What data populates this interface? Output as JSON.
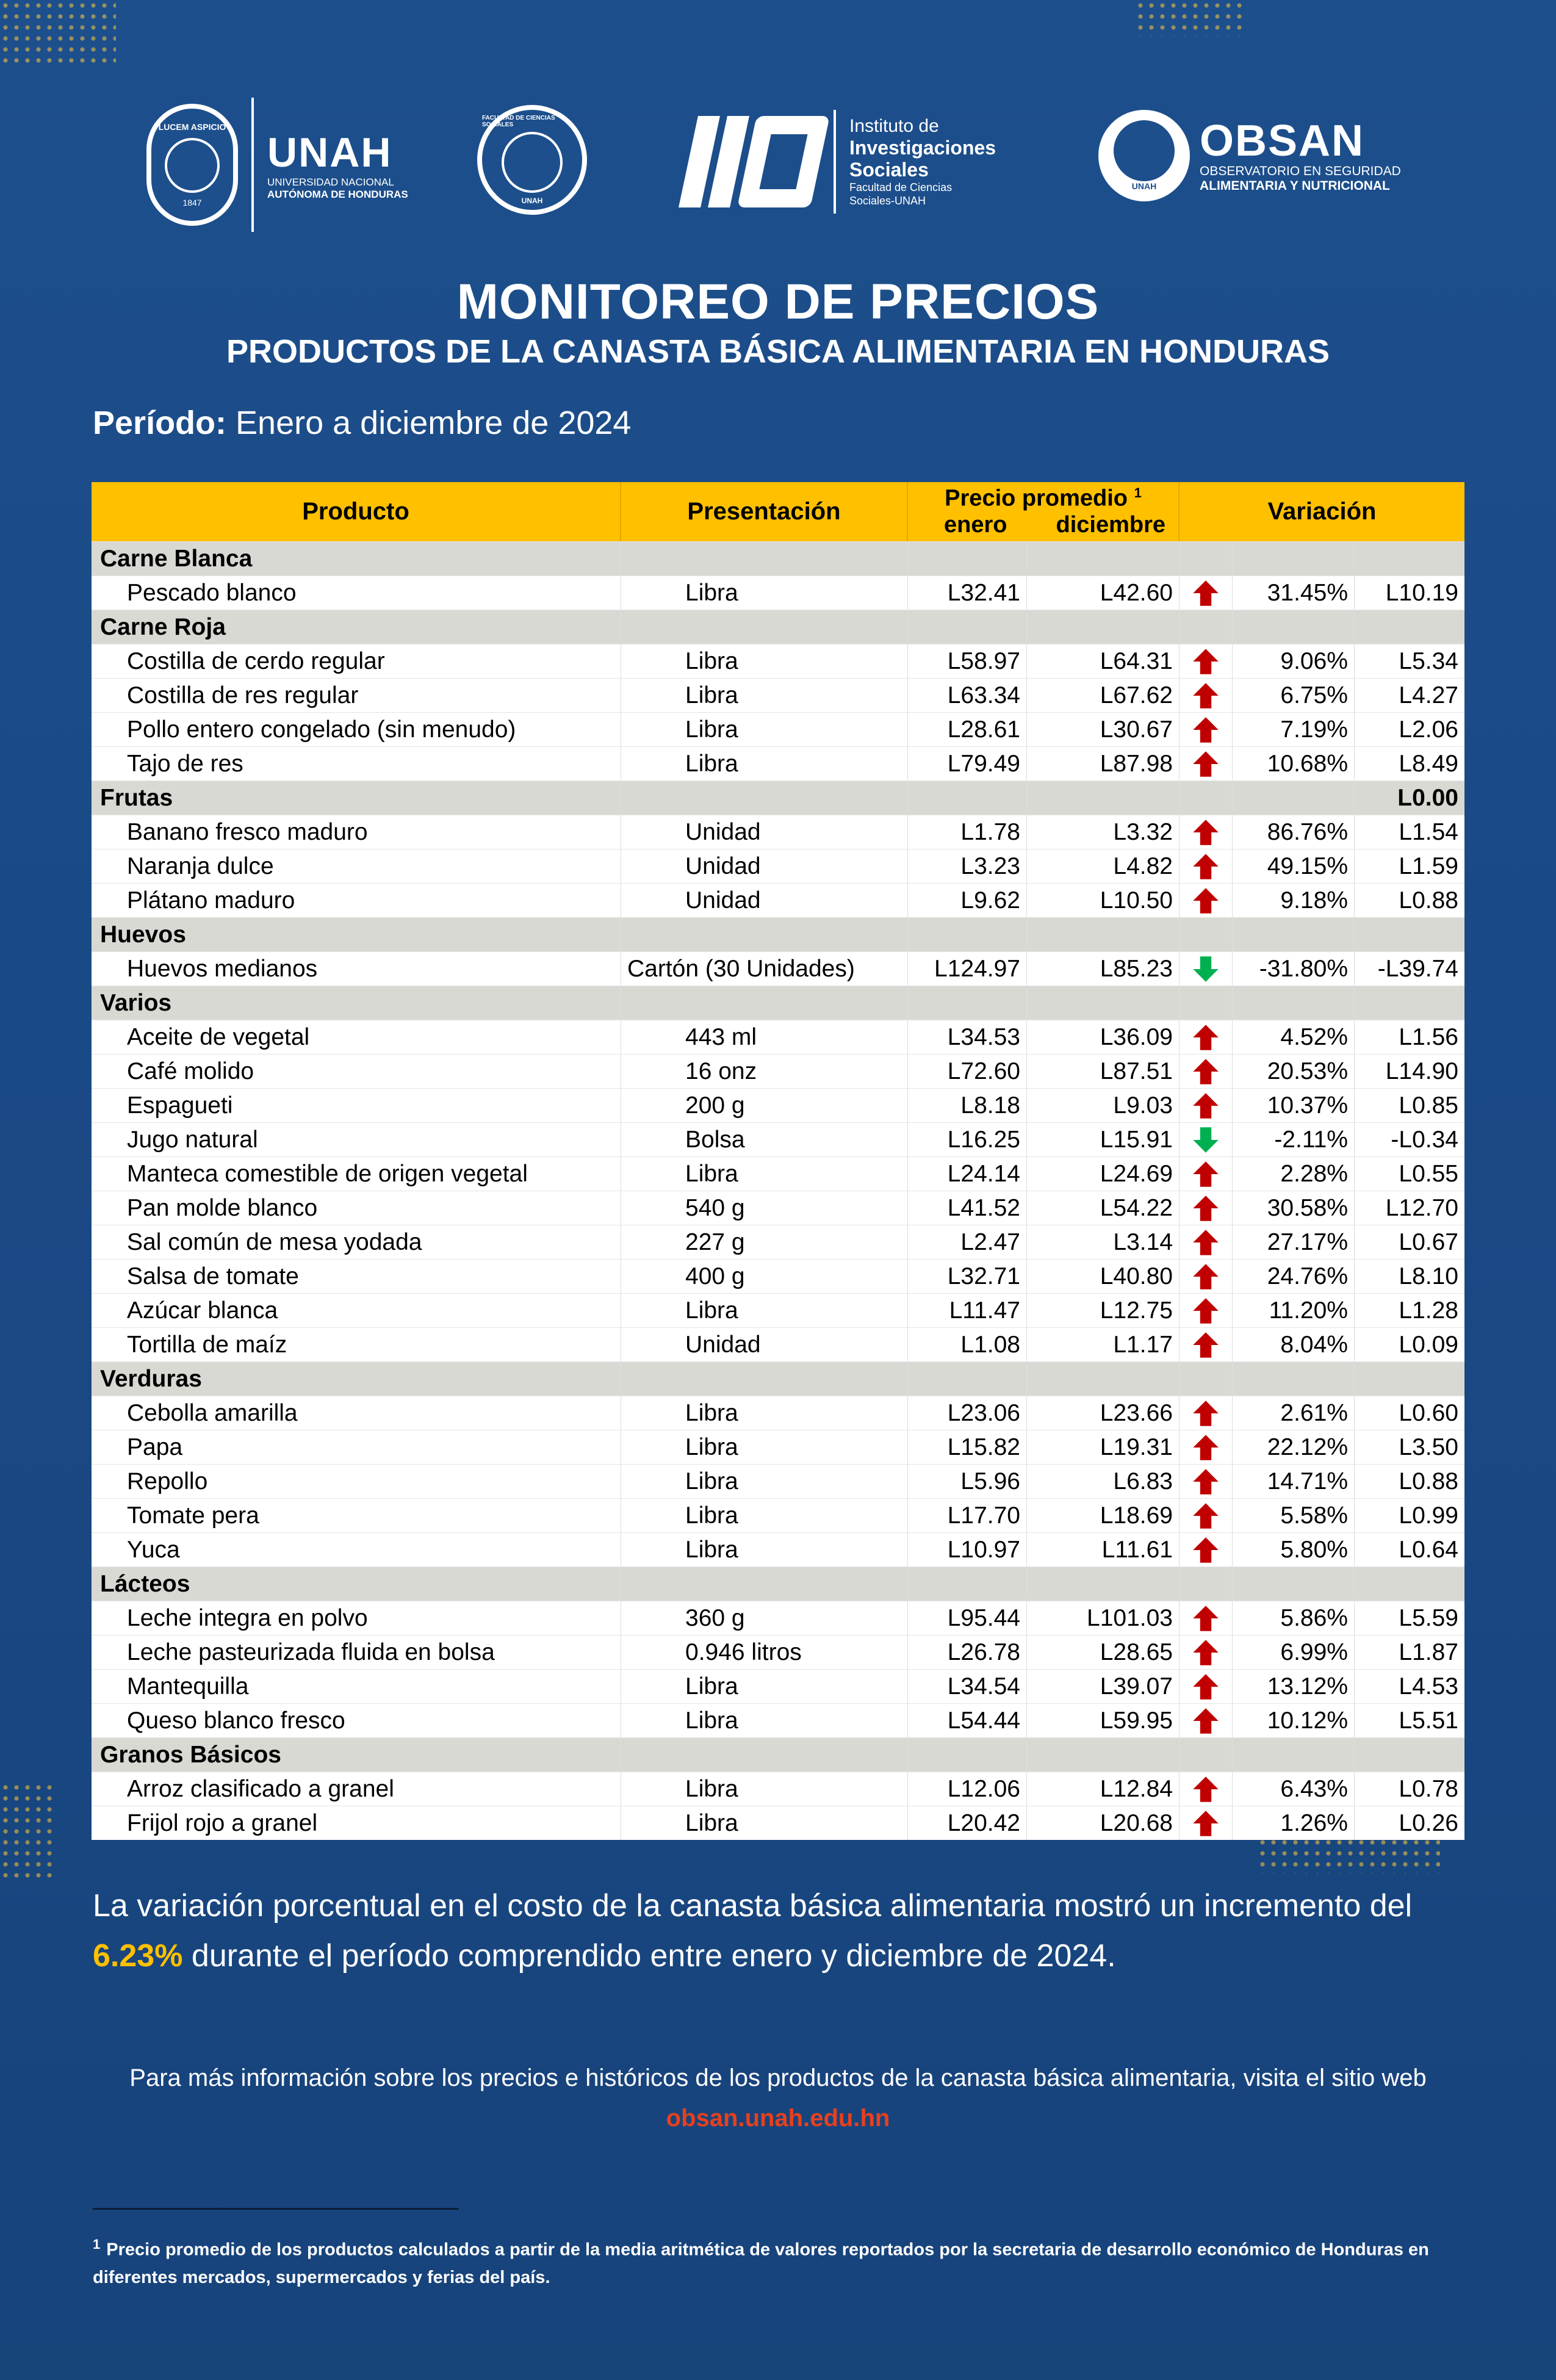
{
  "logos": {
    "unah_name": "UNAH",
    "unah_sub1": "UNIVERSIDAD NACIONAL",
    "unah_sub2": "AUTÓNOMA DE HONDURAS",
    "unah_seal_text": "LUCEM ASPICIO",
    "unah_seal_year": "1847",
    "faculty_seal_top": "FACULTAD DE CIENCIAS SOCIALES",
    "faculty_seal_bottom": "UNAH",
    "iis_line1": "Instituto de",
    "iis_line2": "Investigaciones",
    "iis_line3": "Sociales",
    "iis_line4": "Facultad de Ciencias",
    "iis_line5": "Sociales-UNAH",
    "obsan_name": "OBSAN",
    "obsan_sub1": "OBSERVATORIO EN SEGURIDAD",
    "obsan_sub2": "ALIMENTARIA Y NUTRICIONAL",
    "obsan_badge": "UNAH"
  },
  "title": "MONITOREO DE PRECIOS",
  "subtitle": "PRODUCTOS DE LA CANASTA BÁSICA ALIMENTARIA EN HONDURAS",
  "period": {
    "label": "Período:",
    "value": "Enero a diciembre de 2024"
  },
  "table": {
    "headers": {
      "producto": "Producto",
      "presentacion": "Presentación",
      "precio": "Precio promedio",
      "precio_note": "1",
      "enero": "enero",
      "diciembre": "diciembre",
      "variacion": "Variación"
    },
    "colors": {
      "header_bg": "#ffc000",
      "category_bg": "#d9d9d4",
      "up": "#c00000",
      "down": "#00b050"
    },
    "rows": [
      {
        "type": "cat",
        "name": "Carne Blanca",
        "lempiras": ""
      },
      {
        "type": "item",
        "name": "Pescado blanco",
        "pres": "Libra",
        "enero": "L32.41",
        "diciembre": "L42.60",
        "dir": "up",
        "pct": "31.45%",
        "lempiras": "L10.19"
      },
      {
        "type": "cat",
        "name": "Carne Roja",
        "lempiras": ""
      },
      {
        "type": "item",
        "name": "Costilla de cerdo regular",
        "pres": "Libra",
        "enero": "L58.97",
        "diciembre": "L64.31",
        "dir": "up",
        "pct": "9.06%",
        "lempiras": "L5.34"
      },
      {
        "type": "item",
        "name": "Costilla de res regular",
        "pres": "Libra",
        "enero": "L63.34",
        "diciembre": "L67.62",
        "dir": "up",
        "pct": "6.75%",
        "lempiras": "L4.27"
      },
      {
        "type": "item",
        "name": "Pollo entero congelado (sin menudo)",
        "pres": "Libra",
        "enero": "L28.61",
        "diciembre": "L30.67",
        "dir": "up",
        "pct": "7.19%",
        "lempiras": "L2.06"
      },
      {
        "type": "item",
        "name": "Tajo de res",
        "pres": "Libra",
        "enero": "L79.49",
        "diciembre": "L87.98",
        "dir": "up",
        "pct": "10.68%",
        "lempiras": "L8.49"
      },
      {
        "type": "cat",
        "name": "Frutas",
        "lempiras": "L0.00"
      },
      {
        "type": "item",
        "name": "Banano fresco maduro",
        "pres": "Unidad",
        "enero": "L1.78",
        "diciembre": "L3.32",
        "dir": "up",
        "pct": "86.76%",
        "lempiras": "L1.54"
      },
      {
        "type": "item",
        "name": "Naranja dulce",
        "pres": "Unidad",
        "enero": "L3.23",
        "diciembre": "L4.82",
        "dir": "up",
        "pct": "49.15%",
        "lempiras": "L1.59"
      },
      {
        "type": "item",
        "name": "Plátano maduro",
        "pres": "Unidad",
        "enero": "L9.62",
        "diciembre": "L10.50",
        "dir": "up",
        "pct": "9.18%",
        "lempiras": "L0.88"
      },
      {
        "type": "cat",
        "name": "Huevos",
        "lempiras": ""
      },
      {
        "type": "item",
        "name": "Huevos medianos",
        "pres": "Cartón (30 Unidades)",
        "pres_left": true,
        "enero": "L124.97",
        "diciembre": "L85.23",
        "dir": "down",
        "pct": "-31.80%",
        "lempiras": "-L39.74"
      },
      {
        "type": "cat",
        "name": "Varios",
        "lempiras": ""
      },
      {
        "type": "item",
        "name": "Aceite de vegetal",
        "pres": "443 ml",
        "enero": "L34.53",
        "diciembre": "L36.09",
        "dir": "up",
        "pct": "4.52%",
        "lempiras": "L1.56"
      },
      {
        "type": "item",
        "name": "Café molido",
        "pres": "16 onz",
        "enero": "L72.60",
        "diciembre": "L87.51",
        "dir": "up",
        "pct": "20.53%",
        "lempiras": "L14.90"
      },
      {
        "type": "item",
        "name": "Espagueti",
        "pres": "200 g",
        "enero": "L8.18",
        "diciembre": "L9.03",
        "dir": "up",
        "pct": "10.37%",
        "lempiras": "L0.85"
      },
      {
        "type": "item",
        "name": "Jugo natural",
        "pres": "Bolsa",
        "enero": "L16.25",
        "diciembre": "L15.91",
        "dir": "down",
        "pct": "-2.11%",
        "lempiras": "-L0.34"
      },
      {
        "type": "item",
        "name": "Manteca comestible de origen vegetal",
        "pres": "Libra",
        "enero": "L24.14",
        "diciembre": "L24.69",
        "dir": "up",
        "pct": "2.28%",
        "lempiras": "L0.55"
      },
      {
        "type": "item",
        "name": "Pan molde blanco",
        "pres": "540 g",
        "enero": "L41.52",
        "diciembre": "L54.22",
        "dir": "up",
        "pct": "30.58%",
        "lempiras": "L12.70"
      },
      {
        "type": "item",
        "name": "Sal común de mesa yodada",
        "pres": "227 g",
        "enero": "L2.47",
        "diciembre": "L3.14",
        "dir": "up",
        "pct": "27.17%",
        "lempiras": "L0.67"
      },
      {
        "type": "item",
        "name": "Salsa de tomate",
        "pres": "400 g",
        "enero": "L32.71",
        "diciembre": "L40.80",
        "dir": "up",
        "pct": "24.76%",
        "lempiras": "L8.10"
      },
      {
        "type": "item",
        "name": "Azúcar blanca",
        "pres": "Libra",
        "enero": "L11.47",
        "diciembre": "L12.75",
        "dir": "up",
        "pct": "11.20%",
        "lempiras": "L1.28"
      },
      {
        "type": "item",
        "name": "Tortilla de maíz",
        "pres": "Unidad",
        "enero": "L1.08",
        "diciembre": "L1.17",
        "dir": "up",
        "pct": "8.04%",
        "lempiras": "L0.09"
      },
      {
        "type": "cat",
        "name": "Verduras",
        "lempiras": ""
      },
      {
        "type": "item",
        "name": "Cebolla amarilla",
        "pres": "Libra",
        "enero": "L23.06",
        "diciembre": "L23.66",
        "dir": "up",
        "pct": "2.61%",
        "lempiras": "L0.60"
      },
      {
        "type": "item",
        "name": "Papa",
        "pres": "Libra",
        "enero": "L15.82",
        "diciembre": "L19.31",
        "dir": "up",
        "pct": "22.12%",
        "lempiras": "L3.50"
      },
      {
        "type": "item",
        "name": "Repollo",
        "pres": "Libra",
        "enero": "L5.96",
        "diciembre": "L6.83",
        "dir": "up",
        "pct": "14.71%",
        "lempiras": "L0.88"
      },
      {
        "type": "item",
        "name": "Tomate pera",
        "pres": "Libra",
        "enero": "L17.70",
        "diciembre": "L18.69",
        "dir": "up",
        "pct": "5.58%",
        "lempiras": "L0.99"
      },
      {
        "type": "item",
        "name": "Yuca",
        "pres": "Libra",
        "enero": "L10.97",
        "diciembre": "L11.61",
        "dir": "up",
        "pct": "5.80%",
        "lempiras": "L0.64"
      },
      {
        "type": "cat",
        "name": "Lácteos",
        "lempiras": ""
      },
      {
        "type": "item",
        "name": "Leche integra en polvo",
        "pres": "360 g",
        "enero": "L95.44",
        "diciembre": "L101.03",
        "dir": "up",
        "pct": "5.86%",
        "lempiras": "L5.59"
      },
      {
        "type": "item",
        "name": "Leche pasteurizada fluida en bolsa",
        "pres": "0.946 litros",
        "enero": "L26.78",
        "diciembre": "L28.65",
        "dir": "up",
        "pct": "6.99%",
        "lempiras": "L1.87"
      },
      {
        "type": "item",
        "name": "Mantequilla",
        "pres": "Libra",
        "enero": "L34.54",
        "diciembre": "L39.07",
        "dir": "up",
        "pct": "13.12%",
        "lempiras": "L4.53"
      },
      {
        "type": "item",
        "name": "Queso blanco fresco",
        "pres": "Libra",
        "enero": "L54.44",
        "diciembre": "L59.95",
        "dir": "up",
        "pct": "10.12%",
        "lempiras": "L5.51"
      },
      {
        "type": "cat",
        "name": "Granos Básicos",
        "lempiras": ""
      },
      {
        "type": "item",
        "name": "Arroz clasificado a granel",
        "pres": "Libra",
        "enero": "L12.06",
        "diciembre": "L12.84",
        "dir": "up",
        "pct": "6.43%",
        "lempiras": "L0.78"
      },
      {
        "type": "item",
        "name": "Frijol rojo a granel",
        "pres": "Libra",
        "enero": "L20.42",
        "diciembre": "L20.68",
        "dir": "up",
        "pct": "1.26%",
        "lempiras": "L0.26"
      }
    ]
  },
  "summary": {
    "part1": "La variación porcentual en el costo de la canasta básica alimentaria mostró un incremento del ",
    "highlight": "6.23%",
    "part2": " durante el período comprendido entre enero y diciembre de 2024.",
    "highlight_color": "#ffc000"
  },
  "info": {
    "text": "Para más información sobre los precios e históricos de los productos de la canasta básica alimentaria, visita el sitio web ",
    "link": "obsan.unah.edu.hn",
    "link_color": "#e8401c"
  },
  "footnote": {
    "mark": "1",
    "text": "Precio promedio de los productos calculados a partir de la media aritmética de valores reportados por la secretaria de desarrollo económico de Honduras en diferentes mercados, supermercados y ferias del país."
  }
}
